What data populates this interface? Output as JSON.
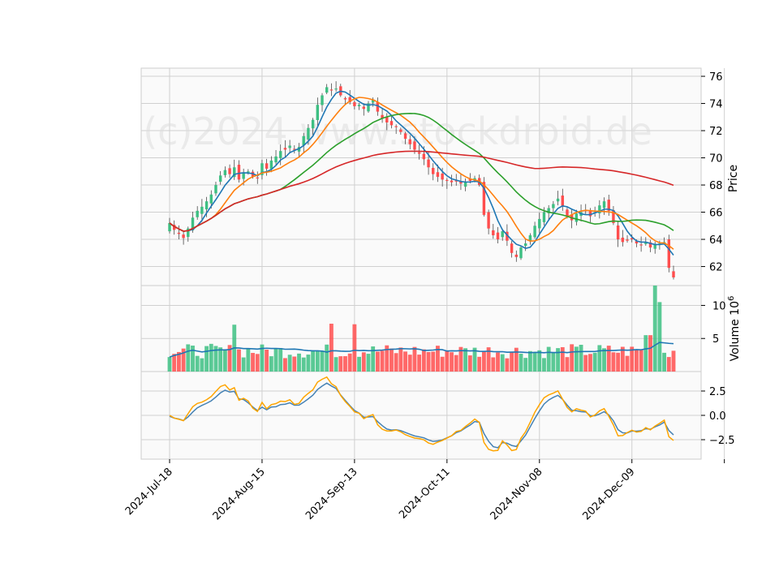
{
  "chart_data": {
    "type": "candlestick",
    "watermark": "(c)2024 www.stockdroid.de",
    "x_tick_labels": [
      "2024-Jul-18",
      "2024-Aug-15",
      "2024-Sep-13",
      "2024-Oct-11",
      "2024-Nov-08",
      "2024-Dec-09"
    ],
    "price_panel": {
      "ylabel": "Price",
      "ylim": [
        60.6,
        76.6
      ],
      "yticks": [
        62,
        64,
        66,
        68,
        70,
        72,
        74,
        76
      ],
      "ohlc_close_path": [
        65.2,
        64.7,
        64.4,
        64.1,
        64.8,
        65.6,
        66.1,
        66.4,
        66.8,
        67.3,
        68.0,
        68.7,
        69.1,
        68.8,
        69.3,
        68.4,
        68.9,
        69.0,
        68.6,
        68.5,
        69.6,
        69.2,
        69.8,
        70.1,
        70.5,
        70.6,
        70.9,
        70.6,
        70.8,
        71.6,
        72.2,
        72.8,
        73.9,
        74.6,
        75.2,
        75.0,
        75.1,
        74.6,
        74.3,
        74.1,
        73.8,
        73.9,
        73.6,
        74.0,
        74.3,
        73.4,
        72.9,
        72.6,
        72.4,
        72.3,
        71.9,
        71.4,
        71.0,
        70.6,
        70.3,
        69.9,
        69.3,
        68.8,
        68.6,
        68.4,
        68.3,
        68.2,
        68.3,
        68.1,
        68.2,
        68.3,
        68.5,
        68.0,
        65.8,
        64.8,
        64.3,
        64.0,
        64.6,
        63.9,
        63.0,
        62.7,
        63.4,
        63.7,
        64.3,
        65.0,
        65.5,
        66.0,
        66.3,
        66.6,
        67.0,
        66.4,
        65.7,
        65.4,
        65.9,
        66.0,
        66.1,
        65.7,
        66.0,
        66.5,
        66.8,
        66.1,
        65.2,
        64.0,
        63.8,
        63.9,
        64.0,
        63.7,
        63.6,
        63.8,
        63.4,
        63.6,
        63.7,
        63.8,
        61.9,
        61.2
      ]
    },
    "volume_panel": {
      "ylabel": "Volume  10^6",
      "yticks": [
        5,
        10
      ],
      "ylim": [
        0,
        13
      ]
    },
    "indicator_panel": {
      "yticks": [
        2.5,
        0.0,
        -2.5
      ],
      "ytick_labels": [
        "2.5",
        "0.0",
        "−2.5"
      ],
      "ylim": [
        -4.5,
        4.5
      ]
    },
    "legend": "none",
    "colors": {
      "up": "#3dbf82",
      "down": "#ff4d4d",
      "ma_blue": "#1f77b4",
      "ma_orange": "#ff7f0e",
      "ma_green": "#2ca02c",
      "ma_red": "#d62728",
      "osc_blue": "#4682b4",
      "osc_orange": "#ffa500"
    }
  }
}
